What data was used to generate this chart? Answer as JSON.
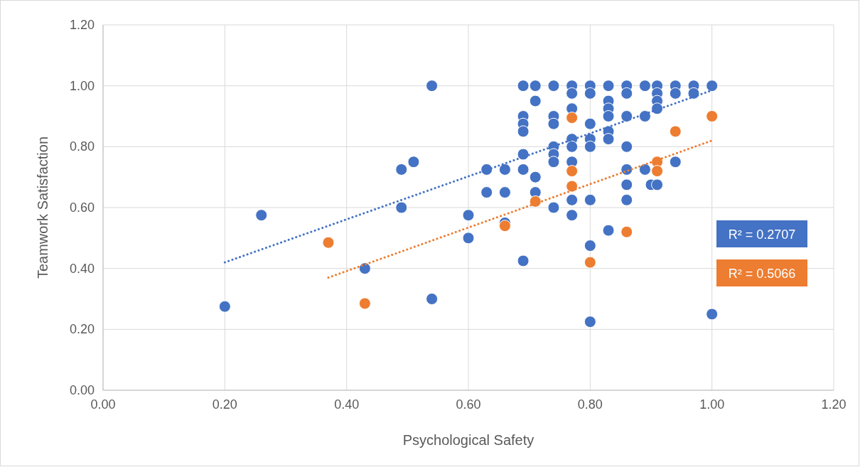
{
  "chart_data": {
    "type": "scatter",
    "xlabel": "Psychological Safety",
    "ylabel": "Teamwork Satisfaction",
    "xlim": [
      0,
      1.2
    ],
    "xticks": [
      {
        "value": 0,
        "label": "0.00"
      },
      {
        "value": 0.2,
        "label": "0.20"
      },
      {
        "value": 0.4,
        "label": "0.40"
      },
      {
        "value": 0.6,
        "label": "0.60"
      },
      {
        "value": 0.8,
        "label": "0.80"
      },
      {
        "value": 1,
        "label": "1.00"
      },
      {
        "value": 1.2,
        "label": "1.20"
      }
    ],
    "ylim": [
      0,
      1.2
    ],
    "yticks": [
      {
        "value": 0,
        "label": "0.00"
      },
      {
        "value": 0.2,
        "label": "0.20"
      },
      {
        "value": 0.4,
        "label": "0.40"
      },
      {
        "value": 0.6,
        "label": "0.60"
      },
      {
        "value": 0.8,
        "label": "0.80"
      },
      {
        "value": 1,
        "label": "1.00"
      },
      {
        "value": 1.2,
        "label": "1.20"
      }
    ],
    "grid": true,
    "marker": "circle",
    "series": [
      {
        "color": "#4472c4",
        "x": [
          0.2,
          0.26,
          0.49,
          0.49,
          0.51,
          0.54,
          0.54,
          0.43,
          0.6,
          0.6,
          0.63,
          0.63,
          0.66,
          0.66,
          0.66,
          0.69,
          0.69,
          0.69,
          0.69,
          0.69,
          0.69,
          0.69,
          0.71,
          0.71,
          0.71,
          0.71,
          0.74,
          0.74,
          0.74,
          0.74,
          0.74,
          0.74,
          0.74,
          0.77,
          0.77,
          0.77,
          0.77,
          0.77,
          0.77,
          0.77,
          0.77,
          0.8,
          0.8,
          0.8,
          0.8,
          0.8,
          0.8,
          0.8,
          0.8,
          0.83,
          0.83,
          0.83,
          0.83,
          0.83,
          0.83,
          0.83,
          0.86,
          0.86,
          0.86,
          0.86,
          0.86,
          0.86,
          0.86,
          0.89,
          0.89,
          0.89,
          0.9,
          0.91,
          0.91,
          0.91,
          0.91,
          0.91,
          0.94,
          0.94,
          0.94,
          0.97,
          0.97,
          1,
          1
        ],
        "values": [
          0.275,
          0.575,
          0.725,
          0.6,
          0.75,
          1,
          0.3,
          0.4,
          0.575,
          0.5,
          0.725,
          0.65,
          0.725,
          0.65,
          0.55,
          1,
          0.9,
          0.875,
          0.85,
          0.775,
          0.725,
          0.425,
          1,
          0.95,
          0.7,
          0.65,
          1,
          0.9,
          0.875,
          0.8,
          0.775,
          0.75,
          0.6,
          1,
          0.975,
          0.925,
          0.825,
          0.8,
          0.75,
          0.625,
          0.575,
          1,
          0.975,
          0.875,
          0.825,
          0.8,
          0.625,
          0.475,
          0.225,
          1,
          0.95,
          0.925,
          0.9,
          0.85,
          0.825,
          0.525,
          1,
          0.975,
          0.9,
          0.8,
          0.725,
          0.675,
          0.625,
          1,
          0.9,
          0.725,
          0.675,
          1,
          0.975,
          0.95,
          0.925,
          0.675,
          1,
          0.975,
          0.75,
          1,
          0.975,
          1,
          0.25
        ]
      },
      {
        "color": "#ed7d31",
        "x": [
          0.37,
          0.43,
          0.66,
          0.71,
          0.77,
          0.77,
          0.77,
          0.8,
          0.86,
          0.91,
          0.91,
          0.94,
          1
        ],
        "values": [
          0.485,
          0.285,
          0.54,
          0.62,
          0.895,
          0.72,
          0.67,
          0.42,
          0.52,
          0.75,
          0.72,
          0.85,
          0.9
        ]
      },
      {
        "type": "line",
        "color": "#4472c4",
        "line_style": "dotted",
        "marker": "none",
        "x": [
          0.2,
          1
        ],
        "values": [
          0.42,
          0.985
        ]
      },
      {
        "type": "line",
        "color": "#ed7d31",
        "line_style": "dotted",
        "marker": "none",
        "x": [
          0.37,
          1
        ],
        "values": [
          0.37,
          0.82
        ]
      }
    ],
    "annotations": [
      "R² = 0.2707",
      "R² = 0.5066"
    ]
  }
}
